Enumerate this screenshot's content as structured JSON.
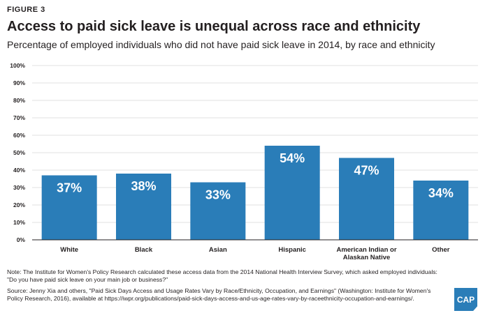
{
  "figure_label": "FIGURE 3",
  "note": "Note: The Institute for Women's Policy Research calculated these access data from the 2014 National Health Interview Survey, which asked employed individuals: \"Do you have paid sick leave on your main job or business?\"",
  "source": "Source: Jenny Xia and others, \"Paid Sick Days Access and Usage Rates Vary by Race/Ethnicity, Occupation, and Earnings\" (Washington: Institute for Women's Policy Research, 2016), available at https://iwpr.org/publications/paid-sick-days-access-and-us-age-rates-vary-by-raceethnicity-occupation-and-earnings/.",
  "logo_text": "CAP",
  "colors": {
    "bar": "#2a7db8",
    "grid": "#d9d9d9",
    "axis": "#231f20"
  },
  "chart_data": {
    "type": "bar",
    "title": "Access to paid sick leave is unequal across race and ethnicity",
    "subtitle": "Percentage of employed individuals who did not have paid sick leave in 2014, by race and ethnicity",
    "categories": [
      "White",
      "Black",
      "Asian",
      "Hispanic",
      "American Indian or Alaskan Native",
      "Other"
    ],
    "values": [
      37,
      38,
      33,
      54,
      47,
      34
    ],
    "value_labels": [
      "37%",
      "38%",
      "33%",
      "54%",
      "47%",
      "34%"
    ],
    "ylim": [
      0,
      100
    ],
    "yticks": [
      "0%",
      "10%",
      "20%",
      "30%",
      "40%",
      "50%",
      "60%",
      "70%",
      "80%",
      "90%",
      "100%"
    ],
    "grid": true,
    "xlabel": "",
    "ylabel": ""
  }
}
